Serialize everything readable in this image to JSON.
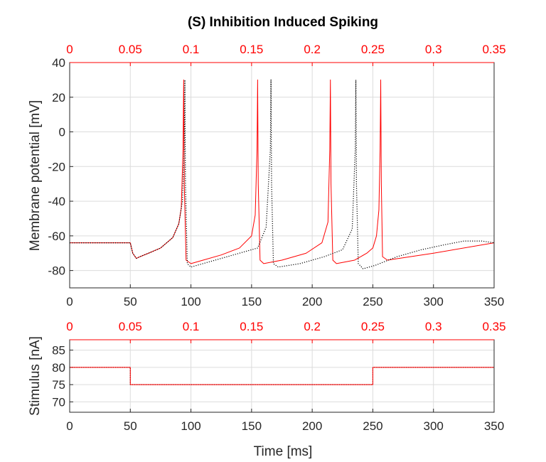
{
  "colors": {
    "primary_trace": "#ff0000",
    "secondary_trace": "#000000",
    "top_axis_labels": "#ff0000",
    "grid": "#dcdcdc",
    "axis": "#262626"
  },
  "chart_data": [
    {
      "type": "line",
      "title": "(S) Inhibition Induced Spiking",
      "xlabel": "",
      "ylabel": "Membrane potential [mV]",
      "xlim": [
        0,
        350
      ],
      "ylim": [
        -90,
        40
      ],
      "x_ticks": [
        "0",
        "50",
        "100",
        "150",
        "200",
        "250",
        "300",
        "350"
      ],
      "y_ticks": [
        "40",
        "20",
        "0",
        "-20",
        "-40",
        "-60",
        "-80"
      ],
      "top_ticks": [
        "0",
        "0.05",
        "0.1",
        "0.15",
        "0.2",
        "0.25",
        "0.3",
        "0.35"
      ],
      "grid": true,
      "series": [
        {
          "style": "solid",
          "color": "#ff0000",
          "x": [
            0,
            50,
            52,
            55,
            58,
            65,
            75,
            85,
            90,
            92,
            93.5,
            94,
            94.5,
            96,
            100,
            110,
            125,
            140,
            150,
            153,
            154.5,
            155,
            155.5,
            157,
            160,
            175,
            195,
            208,
            213,
            214.5,
            215,
            215.5,
            217,
            220,
            235,
            245,
            250,
            253,
            255,
            256,
            256.5,
            257,
            258,
            262,
            300,
            350
          ],
          "y": [
            -64,
            -64,
            -70,
            -73,
            -72,
            -70,
            -67,
            -61,
            -53,
            -44,
            -10,
            30,
            -30,
            -74,
            -76,
            -74,
            -71,
            -67,
            -60,
            -48,
            -10,
            30,
            -30,
            -74,
            -76,
            -74,
            -70,
            -64,
            -52,
            -10,
            30,
            -30,
            -74,
            -76,
            -74,
            -70,
            -67,
            -60,
            -45,
            -10,
            30,
            -30,
            -72,
            -74,
            -70,
            -64
          ]
        },
        {
          "style": "dotted",
          "color": "#000000",
          "x": [
            0,
            50,
            52,
            55,
            58,
            65,
            75,
            85,
            90,
            93,
            94.5,
            95,
            95.5,
            97,
            100,
            115,
            135,
            155,
            162,
            165.5,
            166,
            166.5,
            168,
            172,
            190,
            210,
            225,
            233,
            235.5,
            236,
            236.5,
            238,
            242,
            252,
            270,
            290,
            310,
            325,
            340,
            350
          ],
          "y": [
            -64,
            -64,
            -70,
            -73,
            -72,
            -70,
            -67,
            -61,
            -53,
            -40,
            -10,
            30,
            -30,
            -76,
            -78,
            -75,
            -71,
            -67,
            -55,
            -10,
            30,
            -30,
            -76,
            -78,
            -76,
            -72,
            -68,
            -56,
            -10,
            30,
            -30,
            -76,
            -79,
            -77,
            -72,
            -68,
            -65,
            -63,
            -63,
            -64
          ]
        }
      ]
    },
    {
      "type": "line",
      "title": "",
      "xlabel": "Time [ms]",
      "ylabel": "Stimulus [nA]",
      "xlim": [
        0,
        350
      ],
      "ylim": [
        67,
        88
      ],
      "x_ticks": [
        "0",
        "50",
        "100",
        "150",
        "200",
        "250",
        "300",
        "350"
      ],
      "y_ticks": [
        "85",
        "80",
        "75",
        "70"
      ],
      "top_ticks": [
        "0",
        "0.05",
        "0.1",
        "0.15",
        "0.2",
        "0.25",
        "0.3",
        "0.35"
      ],
      "grid": true,
      "series": [
        {
          "style": "dotted",
          "color": "#000000",
          "x": [
            0,
            50,
            50,
            250,
            250,
            350
          ],
          "y": [
            80,
            80,
            75,
            75,
            80,
            80
          ]
        },
        {
          "style": "solid",
          "color": "#ff0000",
          "x": [
            0,
            50,
            50,
            250,
            250,
            350
          ],
          "y": [
            80,
            80,
            75,
            75,
            80,
            80
          ]
        }
      ]
    }
  ]
}
